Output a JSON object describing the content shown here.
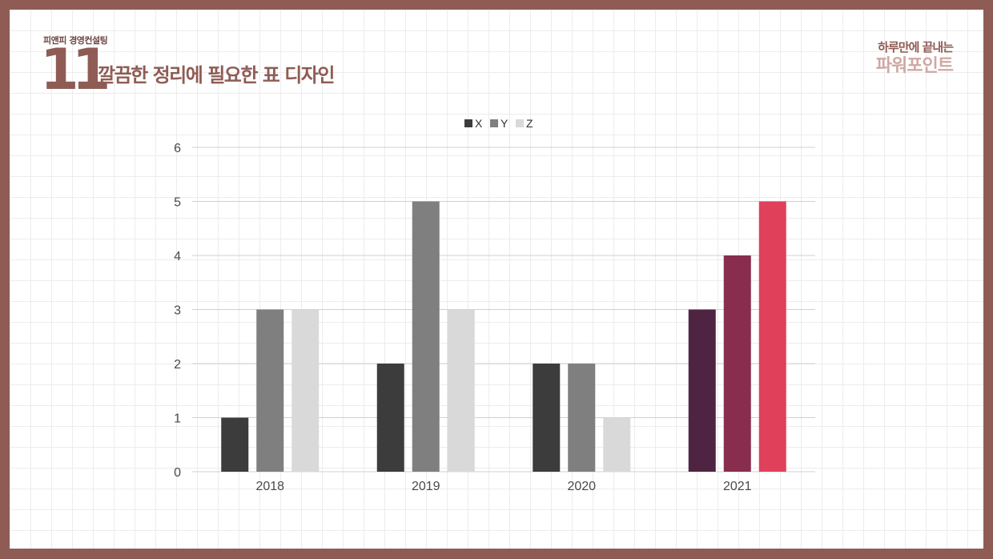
{
  "header": {
    "company": "피앤피 경영컨설팅",
    "page_number": "11",
    "title": "깔끔한 정리에 필요한 표 디자인"
  },
  "brand": {
    "tagline": "하루만에 끝내는",
    "name": "파워포인트"
  },
  "colors": {
    "frame": "#8f5c55",
    "brand_light": "#cfa8a3"
  },
  "chart_data": {
    "type": "bar",
    "categories": [
      "2018",
      "2019",
      "2020",
      "2021"
    ],
    "series": [
      {
        "name": "X",
        "values": [
          1,
          2,
          2,
          3
        ],
        "color": "#3c3c3c"
      },
      {
        "name": "Y",
        "values": [
          3,
          5,
          2,
          4
        ],
        "color": "#7f7f7f"
      },
      {
        "name": "Z",
        "values": [
          3,
          3,
          1,
          5
        ],
        "color": "#d9d9d9"
      }
    ],
    "highlight": {
      "category": "2021",
      "colors": [
        "#4e2442",
        "#882d4e",
        "#e0405a"
      ]
    },
    "ylim": [
      0,
      6
    ],
    "yticks": [
      0,
      1,
      2,
      3,
      4,
      5,
      6
    ],
    "grid": true,
    "legend_position": "top-center"
  }
}
